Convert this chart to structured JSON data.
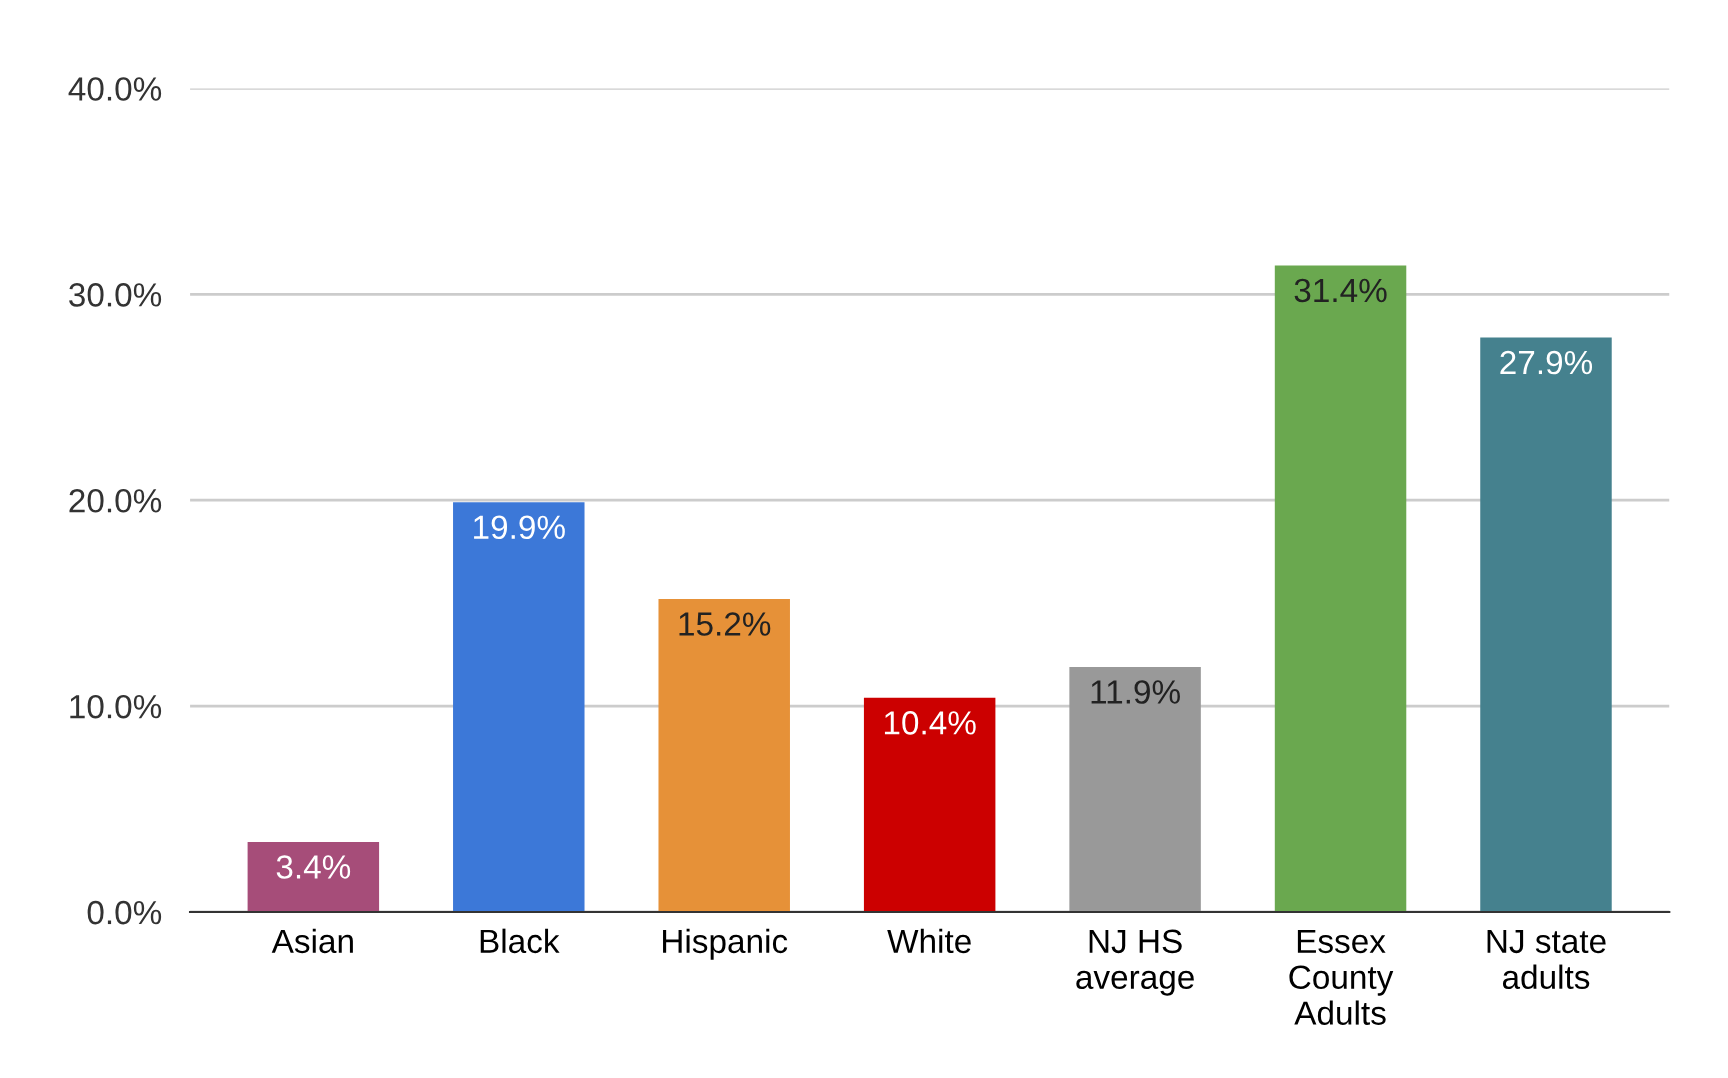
{
  "chart_data": {
    "type": "bar",
    "categories": [
      "Asian",
      "Black",
      "Hispanic",
      "White",
      "NJ HS\naverage",
      "Essex\nCounty\nAdults",
      "NJ state\nadults"
    ],
    "values": [
      3.4,
      19.9,
      15.2,
      10.4,
      11.9,
      31.4,
      27.9
    ],
    "colors": [
      "#a64d79",
      "#3c78d8",
      "#e69138",
      "#cc0000",
      "#999999",
      "#6aa84f",
      "#45818e"
    ],
    "value_labels": [
      "3.4%",
      "19.9%",
      "15.2%",
      "10.4%",
      "11.9%",
      "31.4%",
      "27.9%"
    ],
    "ylim": [
      0,
      40
    ],
    "yticks": [
      {
        "value": 0,
        "label": "0.0%"
      },
      {
        "value": 10,
        "label": "10.0%"
      },
      {
        "value": 20,
        "label": "20.0%"
      },
      {
        "value": 30,
        "label": "30.0%"
      },
      {
        "value": 40,
        "label": "40.0%"
      }
    ],
    "grid": "y"
  }
}
